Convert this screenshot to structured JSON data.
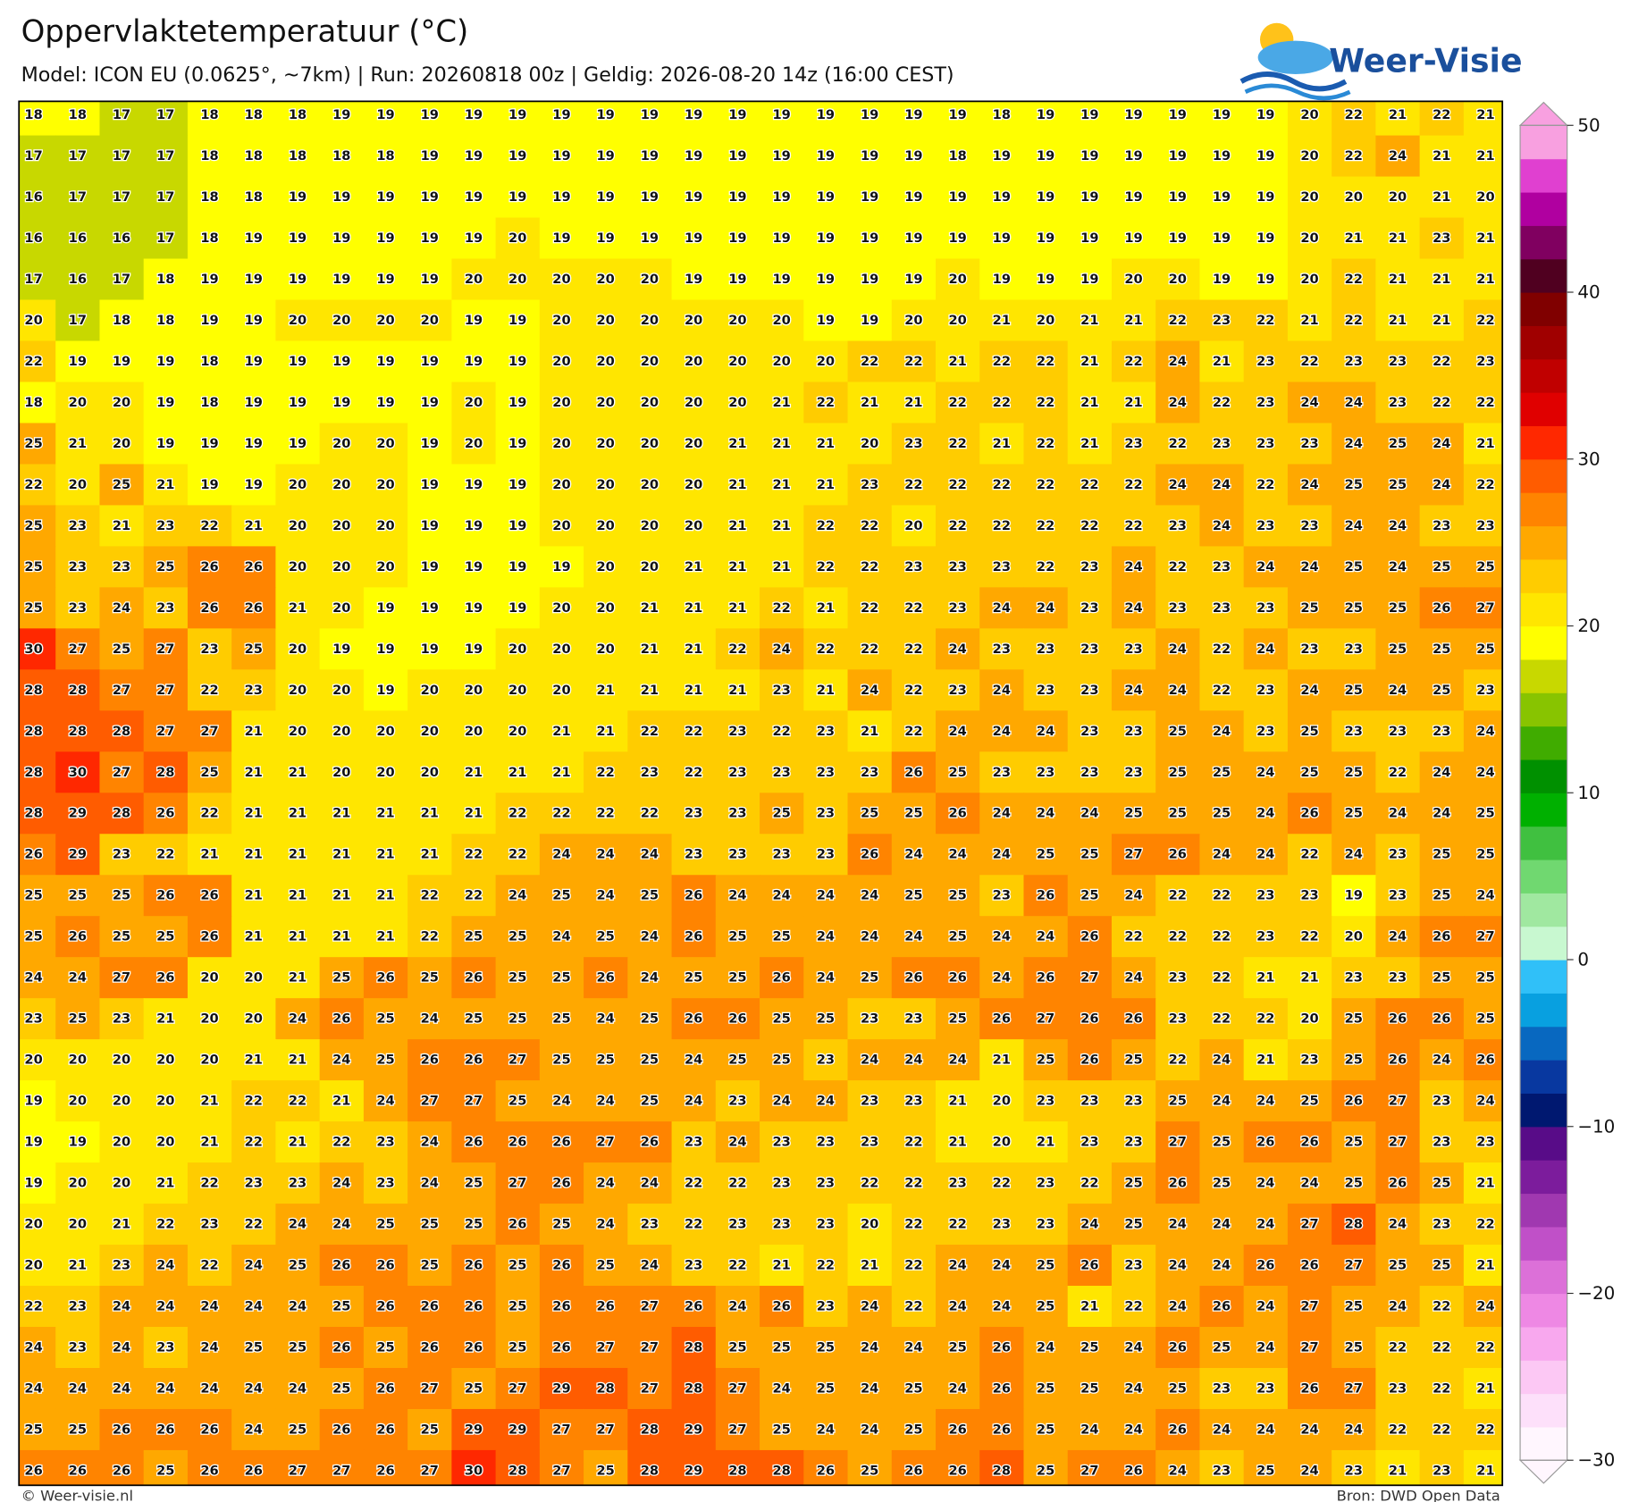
{
  "header": {
    "title": "Oppervlaktetemperatuur (°C)",
    "subtitle": "Model: ICON EU (0.0625°, ~7km)  |  Run: 20260818 00z  |  Geldig: 2026-08-20 14z (16:00 CEST)",
    "logo": "Weer-Visie"
  },
  "map": {
    "type": "grid",
    "rows": [
      [
        18,
        18,
        17,
        17,
        18,
        18,
        18,
        19,
        19,
        19,
        19,
        19,
        19,
        19,
        19,
        19,
        19,
        19,
        19,
        19,
        19,
        19,
        18,
        19,
        19,
        19,
        19,
        19,
        19,
        20,
        22,
        21,
        22,
        21
      ],
      [
        17,
        17,
        17,
        17,
        18,
        18,
        18,
        18,
        18,
        19,
        19,
        19,
        19,
        19,
        19,
        19,
        19,
        19,
        19,
        19,
        19,
        18,
        19,
        19,
        19,
        19,
        19,
        19,
        19,
        20,
        22,
        24,
        21,
        21
      ],
      [
        16,
        17,
        17,
        17,
        18,
        18,
        19,
        19,
        19,
        19,
        19,
        19,
        19,
        19,
        19,
        19,
        19,
        19,
        19,
        19,
        19,
        19,
        19,
        19,
        19,
        19,
        19,
        19,
        19,
        20,
        20,
        20,
        21,
        20
      ],
      [
        16,
        16,
        16,
        17,
        18,
        19,
        19,
        19,
        19,
        19,
        19,
        20,
        19,
        19,
        19,
        19,
        19,
        19,
        19,
        19,
        19,
        19,
        19,
        19,
        19,
        19,
        19,
        19,
        19,
        20,
        21,
        21,
        23,
        21
      ],
      [
        17,
        16,
        17,
        18,
        19,
        19,
        19,
        19,
        19,
        19,
        20,
        20,
        20,
        20,
        20,
        19,
        19,
        19,
        19,
        19,
        19,
        20,
        19,
        19,
        19,
        20,
        20,
        19,
        19,
        20,
        22,
        21,
        21,
        21
      ],
      [
        20,
        17,
        18,
        18,
        19,
        19,
        20,
        20,
        20,
        20,
        19,
        19,
        20,
        20,
        20,
        20,
        20,
        20,
        19,
        19,
        20,
        20,
        21,
        20,
        21,
        21,
        22,
        23,
        22,
        21,
        22,
        21,
        21,
        22
      ],
      [
        22,
        19,
        19,
        19,
        18,
        19,
        19,
        19,
        19,
        19,
        19,
        19,
        20,
        20,
        20,
        20,
        20,
        20,
        20,
        22,
        22,
        21,
        22,
        22,
        21,
        22,
        24,
        21,
        23,
        22,
        23,
        23,
        22,
        23
      ],
      [
        18,
        20,
        20,
        19,
        18,
        19,
        19,
        19,
        19,
        19,
        20,
        19,
        20,
        20,
        20,
        20,
        20,
        21,
        22,
        21,
        21,
        22,
        22,
        22,
        21,
        21,
        24,
        22,
        23,
        24,
        24,
        23,
        22,
        22
      ],
      [
        25,
        21,
        20,
        19,
        19,
        19,
        19,
        20,
        20,
        19,
        20,
        19,
        20,
        20,
        20,
        20,
        21,
        21,
        21,
        20,
        23,
        22,
        21,
        22,
        21,
        23,
        22,
        23,
        23,
        23,
        24,
        25,
        24,
        21
      ],
      [
        22,
        20,
        25,
        21,
        19,
        19,
        20,
        20,
        20,
        19,
        19,
        19,
        20,
        20,
        20,
        20,
        21,
        21,
        21,
        23,
        22,
        22,
        22,
        22,
        22,
        22,
        24,
        24,
        22,
        24,
        25,
        25,
        24,
        22
      ],
      [
        25,
        23,
        21,
        23,
        22,
        21,
        20,
        20,
        20,
        19,
        19,
        19,
        20,
        20,
        20,
        20,
        21,
        21,
        22,
        22,
        20,
        22,
        22,
        22,
        22,
        22,
        23,
        24,
        23,
        23,
        24,
        24,
        23,
        23
      ],
      [
        25,
        23,
        23,
        25,
        26,
        26,
        20,
        20,
        20,
        19,
        19,
        19,
        19,
        20,
        20,
        21,
        21,
        21,
        22,
        22,
        23,
        23,
        23,
        22,
        23,
        24,
        22,
        23,
        24,
        24,
        25,
        24,
        25,
        25
      ],
      [
        25,
        23,
        24,
        23,
        26,
        26,
        21,
        20,
        19,
        19,
        19,
        19,
        20,
        20,
        21,
        21,
        21,
        22,
        21,
        22,
        22,
        23,
        24,
        24,
        23,
        24,
        23,
        23,
        23,
        25,
        25,
        25,
        26,
        27
      ],
      [
        30,
        27,
        25,
        27,
        23,
        25,
        20,
        19,
        19,
        19,
        19,
        20,
        20,
        20,
        21,
        21,
        22,
        24,
        22,
        22,
        22,
        24,
        23,
        23,
        23,
        23,
        24,
        22,
        24,
        23,
        23,
        25,
        25,
        25
      ],
      [
        28,
        28,
        27,
        27,
        22,
        23,
        20,
        20,
        19,
        20,
        20,
        20,
        20,
        21,
        21,
        21,
        21,
        23,
        21,
        24,
        22,
        23,
        24,
        23,
        23,
        24,
        24,
        22,
        23,
        24,
        25,
        24,
        25,
        23
      ],
      [
        28,
        28,
        28,
        27,
        27,
        21,
        20,
        20,
        20,
        20,
        20,
        20,
        21,
        21,
        22,
        22,
        23,
        22,
        23,
        21,
        22,
        24,
        24,
        24,
        23,
        23,
        25,
        24,
        23,
        25,
        23,
        23,
        23,
        24
      ],
      [
        28,
        30,
        27,
        28,
        25,
        21,
        21,
        20,
        20,
        20,
        21,
        21,
        21,
        22,
        23,
        22,
        23,
        23,
        23,
        23,
        26,
        25,
        23,
        23,
        23,
        23,
        25,
        25,
        24,
        25,
        25,
        22,
        24,
        24
      ],
      [
        28,
        29,
        28,
        26,
        22,
        21,
        21,
        21,
        21,
        21,
        21,
        22,
        22,
        22,
        22,
        23,
        23,
        25,
        23,
        25,
        25,
        26,
        24,
        24,
        24,
        25,
        25,
        25,
        24,
        26,
        25,
        24,
        24,
        25
      ],
      [
        26,
        29,
        23,
        22,
        21,
        21,
        21,
        21,
        21,
        21,
        22,
        22,
        24,
        24,
        24,
        23,
        23,
        23,
        23,
        26,
        24,
        24,
        24,
        25,
        25,
        27,
        26,
        24,
        24,
        22,
        24,
        23,
        25,
        25
      ],
      [
        25,
        25,
        25,
        26,
        26,
        21,
        21,
        21,
        21,
        22,
        22,
        24,
        25,
        24,
        25,
        26,
        24,
        24,
        24,
        24,
        25,
        25,
        23,
        26,
        25,
        24,
        22,
        22,
        23,
        23,
        19,
        23,
        25,
        24
      ],
      [
        25,
        26,
        25,
        25,
        26,
        21,
        21,
        21,
        21,
        22,
        25,
        25,
        24,
        25,
        24,
        26,
        25,
        25,
        24,
        24,
        24,
        25,
        24,
        24,
        26,
        22,
        22,
        22,
        23,
        22,
        20,
        24,
        26,
        27
      ],
      [
        24,
        24,
        27,
        26,
        20,
        20,
        21,
        25,
        26,
        25,
        26,
        25,
        25,
        26,
        24,
        25,
        25,
        26,
        24,
        25,
        26,
        26,
        24,
        26,
        27,
        24,
        23,
        22,
        21,
        21,
        23,
        23,
        25,
        25
      ],
      [
        23,
        25,
        23,
        21,
        20,
        20,
        24,
        26,
        25,
        24,
        25,
        25,
        25,
        24,
        25,
        26,
        26,
        25,
        25,
        23,
        23,
        25,
        26,
        27,
        26,
        26,
        23,
        22,
        22,
        20,
        25,
        26,
        26,
        25
      ],
      [
        20,
        20,
        20,
        20,
        20,
        21,
        21,
        24,
        25,
        26,
        26,
        27,
        25,
        25,
        25,
        24,
        25,
        25,
        23,
        24,
        24,
        24,
        21,
        25,
        26,
        25,
        22,
        24,
        21,
        23,
        25,
        26,
        24,
        26
      ],
      [
        19,
        20,
        20,
        20,
        21,
        22,
        22,
        21,
        24,
        27,
        27,
        25,
        24,
        24,
        25,
        24,
        23,
        24,
        24,
        23,
        23,
        21,
        20,
        23,
        23,
        23,
        25,
        24,
        24,
        25,
        26,
        27,
        23,
        24
      ],
      [
        19,
        19,
        20,
        20,
        21,
        22,
        21,
        22,
        23,
        24,
        26,
        26,
        26,
        27,
        26,
        23,
        24,
        23,
        23,
        23,
        22,
        21,
        20,
        21,
        23,
        23,
        27,
        25,
        26,
        26,
        25,
        27,
        23,
        23
      ],
      [
        19,
        20,
        20,
        21,
        22,
        23,
        23,
        24,
        23,
        24,
        25,
        27,
        26,
        24,
        24,
        22,
        22,
        23,
        23,
        22,
        22,
        23,
        22,
        23,
        22,
        25,
        26,
        25,
        24,
        24,
        25,
        26,
        25,
        21
      ],
      [
        20,
        20,
        21,
        22,
        23,
        22,
        24,
        24,
        25,
        25,
        25,
        26,
        25,
        24,
        23,
        22,
        23,
        23,
        23,
        20,
        22,
        22,
        23,
        23,
        24,
        25,
        24,
        24,
        24,
        27,
        28,
        24,
        23,
        22
      ],
      [
        20,
        21,
        23,
        24,
        22,
        24,
        25,
        26,
        26,
        25,
        26,
        25,
        26,
        25,
        24,
        23,
        22,
        21,
        22,
        21,
        22,
        24,
        24,
        25,
        26,
        23,
        24,
        24,
        26,
        26,
        27,
        25,
        25,
        21
      ],
      [
        22,
        23,
        24,
        24,
        24,
        24,
        24,
        25,
        26,
        26,
        26,
        25,
        26,
        26,
        27,
        26,
        24,
        26,
        23,
        24,
        22,
        24,
        24,
        25,
        21,
        22,
        24,
        26,
        24,
        27,
        25,
        24,
        22,
        24
      ],
      [
        24,
        23,
        24,
        23,
        24,
        25,
        25,
        26,
        25,
        26,
        26,
        25,
        26,
        27,
        27,
        28,
        25,
        25,
        25,
        24,
        24,
        25,
        26,
        24,
        25,
        24,
        26,
        25,
        24,
        27,
        25,
        22,
        22,
        22
      ],
      [
        24,
        24,
        24,
        24,
        24,
        24,
        24,
        25,
        26,
        27,
        25,
        27,
        29,
        28,
        27,
        28,
        27,
        24,
        25,
        24,
        25,
        24,
        26,
        25,
        25,
        24,
        25,
        23,
        23,
        26,
        27,
        23,
        22,
        21
      ],
      [
        25,
        25,
        26,
        26,
        26,
        24,
        25,
        26,
        26,
        25,
        29,
        29,
        27,
        27,
        28,
        29,
        27,
        25,
        24,
        24,
        25,
        26,
        26,
        25,
        24,
        24,
        26,
        24,
        24,
        24,
        24,
        22,
        22,
        22
      ],
      [
        26,
        26,
        26,
        25,
        26,
        26,
        27,
        27,
        26,
        27,
        30,
        28,
        27,
        25,
        28,
        29,
        28,
        28,
        26,
        25,
        26,
        26,
        28,
        25,
        27,
        26,
        24,
        23,
        25,
        24,
        23,
        21,
        23,
        21
      ]
    ],
    "color_scale": {
      "min": -30,
      "step": 2,
      "colors": [
        "#fff6fe",
        "#fde0fa",
        "#fcc8f4",
        "#f8a8ee",
        "#ee88e4",
        "#dc70d8",
        "#c050c8",
        "#a038b0",
        "#7c1c9c",
        "#580c88",
        "#001870",
        "#0838a0",
        "#0868c0",
        "#08a0e0",
        "#30c0f8",
        "#c8f8d0",
        "#a0e8a0",
        "#70d870",
        "#40c040",
        "#00b000",
        "#009000",
        "#40ac00",
        "#88c400",
        "#c8d800",
        "#ffff00",
        "#ffe600",
        "#ffcc00",
        "#ffa800",
        "#ff8400",
        "#ff5c00",
        "#ff2800",
        "#e00000",
        "#c00000",
        "#a00000",
        "#800000",
        "#500020",
        "#800060",
        "#b000a0",
        "#e040d0",
        "#f8a0e0"
      ]
    },
    "colorbar": {
      "ticks": [
        {
          "value": -30,
          "label": "−30"
        },
        {
          "value": -20,
          "label": "−20"
        },
        {
          "value": -10,
          "label": "−10"
        },
        0,
        10,
        20,
        30,
        40,
        50
      ]
    }
  },
  "footer": {
    "left": "© Weer-visie.nl",
    "right": "Bron: DWD Open Data"
  }
}
